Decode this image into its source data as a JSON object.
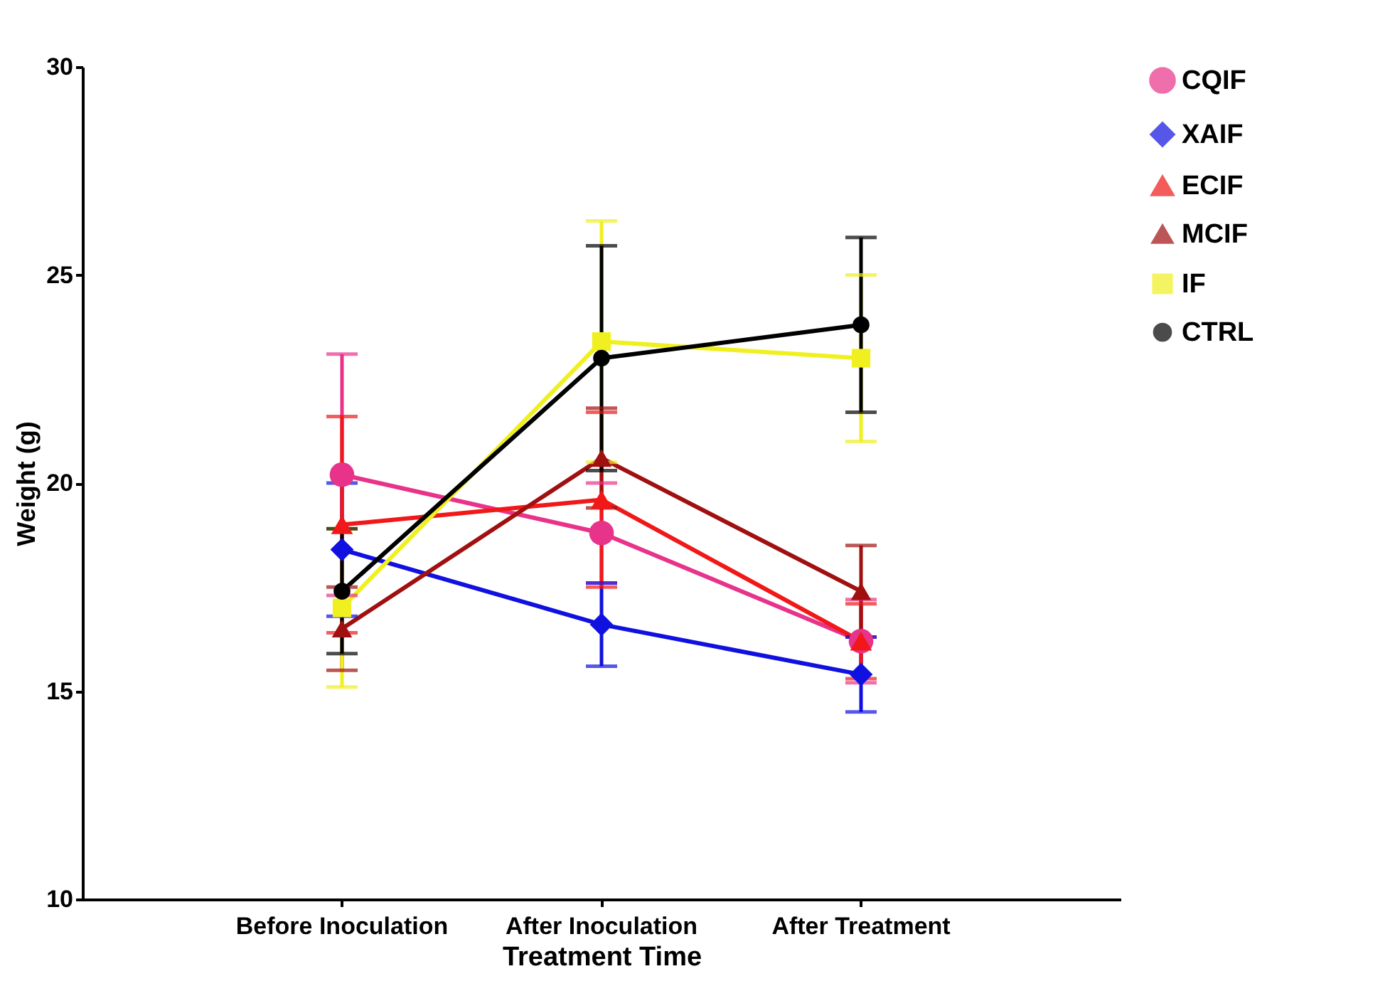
{
  "chart_data": {
    "type": "line",
    "xlabel": "Treatment Time",
    "ylabel": "Weight (g)",
    "categories": [
      "Before Inoculation",
      "After Inoculation",
      "After Treatment"
    ],
    "ylim": [
      10,
      30
    ],
    "yticks": [
      10,
      15,
      20,
      25,
      30
    ],
    "grid": false,
    "legend": "top right",
    "series": [
      {
        "name": "CQIF",
        "color": "#e8338a",
        "marker": "circle",
        "values": [
          20.2,
          18.8,
          16.2
        ],
        "errors": [
          2.9,
          1.2,
          1.0
        ]
      },
      {
        "name": "XAIF",
        "color": "#1010e0",
        "marker": "diamond",
        "values": [
          18.4,
          16.6,
          15.4
        ],
        "errors": [
          1.6,
          1.0,
          0.9
        ]
      },
      {
        "name": "ECIF",
        "color": "#f01818",
        "marker": "triangle",
        "values": [
          19.0,
          19.6,
          16.2
        ],
        "errors": [
          2.6,
          2.1,
          0.9
        ]
      },
      {
        "name": "MCIF",
        "color": "#a01010",
        "marker": "triangle",
        "values": [
          16.5,
          20.6,
          17.4
        ],
        "errors": [
          1.0,
          1.2,
          1.1
        ]
      },
      {
        "name": "IF",
        "color": "#f0f020",
        "marker": "square",
        "values": [
          17.0,
          23.4,
          23.0
        ],
        "errors": [
          1.9,
          2.9,
          2.0
        ]
      },
      {
        "name": "CTRL",
        "color": "#000000",
        "marker": "circle",
        "values": [
          17.4,
          23.0,
          23.8
        ],
        "errors": [
          1.5,
          2.7,
          2.1
        ]
      }
    ]
  }
}
